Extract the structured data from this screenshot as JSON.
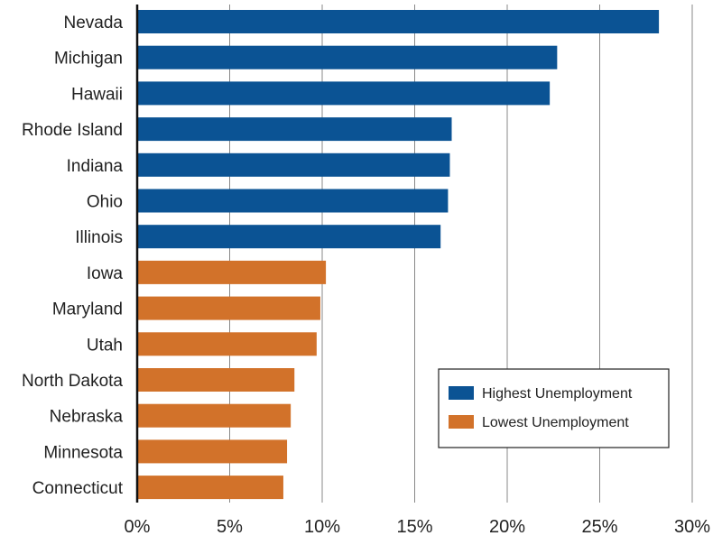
{
  "chart_data": {
    "type": "bar",
    "orientation": "horizontal",
    "categories": [
      "Nevada",
      "Michigan",
      "Hawaii",
      "Rhode Island",
      "Indiana",
      "Ohio",
      "Illinois",
      "Iowa",
      "Maryland",
      "Utah",
      "North Dakota",
      "Nebraska",
      "Minnesota",
      "Connecticut"
    ],
    "values": [
      28.2,
      22.7,
      22.3,
      17.0,
      16.9,
      16.8,
      16.4,
      10.2,
      9.9,
      9.7,
      8.5,
      8.3,
      8.1,
      7.9
    ],
    "groups": [
      "Highest Unemployment",
      "Highest Unemployment",
      "Highest Unemployment",
      "Highest Unemployment",
      "Highest Unemployment",
      "Highest Unemployment",
      "Highest Unemployment",
      "Lowest Unemployment",
      "Lowest Unemployment",
      "Lowest Unemployment",
      "Lowest Unemployment",
      "Lowest Unemployment",
      "Lowest Unemployment",
      "Lowest Unemployment"
    ],
    "xlim": [
      0,
      30
    ],
    "xticks": [
      0,
      5,
      10,
      15,
      20,
      25,
      30
    ],
    "xtick_labels": [
      "0%",
      "5%",
      "10%",
      "15%",
      "20%",
      "25%",
      "30%"
    ],
    "title": "",
    "xlabel": "",
    "ylabel": "",
    "grid": "vertical",
    "legend": {
      "placement": "bottom-right",
      "entries": [
        {
          "label": "Highest Unemployment",
          "color": "#0b5394"
        },
        {
          "label": "Lowest Unemployment",
          "color": "#d2722a"
        }
      ]
    },
    "colors": {
      "Highest Unemployment": "#0b5394",
      "Lowest Unemployment": "#d2722a",
      "gridline": "#888888",
      "axis": "#111111"
    }
  }
}
